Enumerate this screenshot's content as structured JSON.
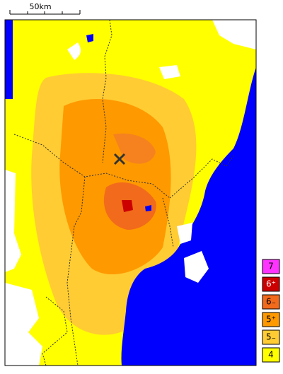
{
  "scale_label": "50km",
  "legend": [
    {
      "label": "7",
      "color": "#ff33ff"
    },
    {
      "label": "6⁺",
      "color": "#cc0000"
    },
    {
      "label": "6₋",
      "color": "#f26a1b"
    },
    {
      "label": "5⁺",
      "color": "#ff9900"
    },
    {
      "label": "5₋",
      "color": "#ffcc33"
    },
    {
      "label": "4",
      "color": "#ffff00"
    }
  ]
}
